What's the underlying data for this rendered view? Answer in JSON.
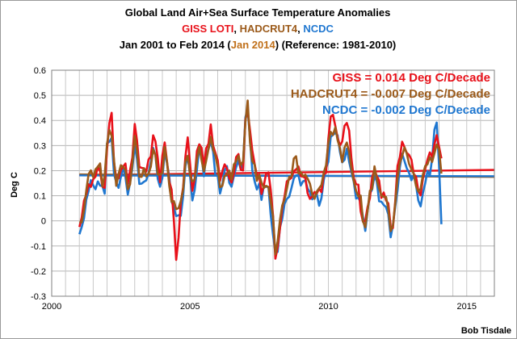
{
  "chart_data": {
    "type": "line",
    "title": "Global Land Air+Sea Surface Temperature Anomalies",
    "subtitle_parts": [
      {
        "text": "GISS LOTI",
        "color": "#e8111a"
      },
      {
        "text": ", ",
        "color": "#000000"
      },
      {
        "text": "HADCRUT4",
        "color": "#9b5a1a"
      },
      {
        "text": ", ",
        "color": "#000000"
      },
      {
        "text": "NCDC",
        "color": "#1f77d0"
      }
    ],
    "period_parts": [
      {
        "text": "Jan 2001 to Feb 2014 (",
        "color": "#000000"
      },
      {
        "text": "Jan 2014",
        "color": "#c0701a"
      },
      {
        "text": ") (Reference: 1981-2010)",
        "color": "#000000"
      }
    ],
    "ylabel": "Deg C",
    "xlim": [
      2000,
      2016
    ],
    "ylim": [
      -0.3,
      0.6
    ],
    "xticks": [
      2000,
      2005,
      2010,
      2015
    ],
    "yticks": [
      -0.3,
      -0.2,
      -0.1,
      0,
      0.1,
      0.2,
      0.3,
      0.4,
      0.5,
      0.6
    ],
    "ytick_labels": [
      "-0.3",
      "-0.2",
      "-0.1",
      "0",
      "0.1",
      "0.2",
      "0.3",
      "0.4",
      "0.5",
      "0.6"
    ],
    "grid": true,
    "legend": "top-right",
    "credit": "Bob Tisdale",
    "series": [
      {
        "name": "GISS",
        "label": "GISS = 0.014 Deg C/Decade",
        "color": "#e8111a",
        "trend": [
          [
            2001.0,
            0.182
          ],
          [
            2016.0,
            0.203
          ]
        ],
        "anchors": [
          [
            2001.0,
            0.0
          ],
          [
            2001.1,
            -0.01
          ],
          [
            2001.3,
            0.18
          ],
          [
            2001.5,
            0.15
          ],
          [
            2001.7,
            0.2
          ],
          [
            2001.9,
            0.12
          ],
          [
            2002.0,
            0.3
          ],
          [
            2002.15,
            0.43
          ],
          [
            2002.3,
            0.17
          ],
          [
            2002.6,
            0.24
          ],
          [
            2002.8,
            0.14
          ],
          [
            2003.0,
            0.36
          ],
          [
            2003.2,
            0.2
          ],
          [
            2003.5,
            0.22
          ],
          [
            2003.7,
            0.33
          ],
          [
            2003.9,
            0.17
          ],
          [
            2004.1,
            0.3
          ],
          [
            2004.35,
            0.1
          ],
          [
            2004.5,
            -0.14
          ],
          [
            2004.7,
            0.08
          ],
          [
            2004.9,
            0.34
          ],
          [
            2005.1,
            0.1
          ],
          [
            2005.3,
            0.33
          ],
          [
            2005.5,
            0.24
          ],
          [
            2005.75,
            0.38
          ],
          [
            2005.9,
            0.27
          ],
          [
            2006.1,
            0.16
          ],
          [
            2006.3,
            0.25
          ],
          [
            2006.5,
            0.15
          ],
          [
            2006.7,
            0.3
          ],
          [
            2006.9,
            0.18
          ],
          [
            2007.05,
            0.51
          ],
          [
            2007.2,
            0.3
          ],
          [
            2007.4,
            0.2
          ],
          [
            2007.6,
            0.12
          ],
          [
            2007.8,
            0.2
          ],
          [
            2008.0,
            0.02
          ],
          [
            2008.1,
            -0.2
          ],
          [
            2008.3,
            0.05
          ],
          [
            2008.5,
            0.14
          ],
          [
            2008.8,
            0.22
          ],
          [
            2009.0,
            0.2
          ],
          [
            2009.2,
            0.15
          ],
          [
            2009.4,
            0.1
          ],
          [
            2009.7,
            0.12
          ],
          [
            2009.9,
            0.2
          ],
          [
            2010.1,
            0.42
          ],
          [
            2010.3,
            0.35
          ],
          [
            2010.5,
            0.3
          ],
          [
            2010.7,
            0.42
          ],
          [
            2010.9,
            0.2
          ],
          [
            2011.1,
            0.12
          ],
          [
            2011.3,
            -0.04
          ],
          [
            2011.5,
            0.1
          ],
          [
            2011.7,
            0.25
          ],
          [
            2011.9,
            0.08
          ],
          [
            2012.1,
            0.1
          ],
          [
            2012.3,
            -0.06
          ],
          [
            2012.5,
            0.2
          ],
          [
            2012.7,
            0.31
          ],
          [
            2012.9,
            0.24
          ],
          [
            2013.1,
            0.2
          ],
          [
            2013.3,
            0.08
          ],
          [
            2013.5,
            0.21
          ],
          [
            2013.7,
            0.26
          ],
          [
            2013.9,
            0.36
          ],
          [
            2014.0,
            0.31
          ],
          [
            2014.1,
            0.22
          ]
        ]
      },
      {
        "name": "HADCRUT4",
        "label": "HADCRUT4 = -0.007 Deg C/Decade",
        "color": "#9b5a1a",
        "trend": [
          [
            2001.0,
            0.185
          ],
          [
            2016.0,
            0.175
          ]
        ],
        "anchors": [
          [
            2001.0,
            0.02
          ],
          [
            2001.1,
            0.0
          ],
          [
            2001.3,
            0.19
          ],
          [
            2001.5,
            0.16
          ],
          [
            2001.7,
            0.22
          ],
          [
            2001.9,
            0.14
          ],
          [
            2002.0,
            0.33
          ],
          [
            2002.15,
            0.38
          ],
          [
            2002.3,
            0.16
          ],
          [
            2002.6,
            0.22
          ],
          [
            2002.8,
            0.12
          ],
          [
            2003.0,
            0.33
          ],
          [
            2003.2,
            0.17
          ],
          [
            2003.5,
            0.2
          ],
          [
            2003.7,
            0.31
          ],
          [
            2003.9,
            0.16
          ],
          [
            2004.1,
            0.28
          ],
          [
            2004.35,
            0.09
          ],
          [
            2004.5,
            0.06
          ],
          [
            2004.7,
            0.08
          ],
          [
            2004.9,
            0.3
          ],
          [
            2005.1,
            0.12
          ],
          [
            2005.3,
            0.3
          ],
          [
            2005.5,
            0.22
          ],
          [
            2005.75,
            0.33
          ],
          [
            2005.9,
            0.25
          ],
          [
            2006.1,
            0.14
          ],
          [
            2006.3,
            0.22
          ],
          [
            2006.5,
            0.16
          ],
          [
            2006.7,
            0.28
          ],
          [
            2006.9,
            0.2
          ],
          [
            2007.05,
            0.51
          ],
          [
            2007.2,
            0.27
          ],
          [
            2007.4,
            0.18
          ],
          [
            2007.6,
            0.14
          ],
          [
            2007.8,
            0.17
          ],
          [
            2008.0,
            0.0
          ],
          [
            2008.1,
            -0.18
          ],
          [
            2008.3,
            0.03
          ],
          [
            2008.5,
            0.12
          ],
          [
            2008.8,
            0.25
          ],
          [
            2009.0,
            0.18
          ],
          [
            2009.2,
            0.16
          ],
          [
            2009.4,
            0.1
          ],
          [
            2009.7,
            0.11
          ],
          [
            2009.9,
            0.22
          ],
          [
            2010.1,
            0.35
          ],
          [
            2010.3,
            0.36
          ],
          [
            2010.5,
            0.25
          ],
          [
            2010.7,
            0.33
          ],
          [
            2010.9,
            0.16
          ],
          [
            2011.1,
            0.12
          ],
          [
            2011.3,
            -0.02
          ],
          [
            2011.5,
            0.11
          ],
          [
            2011.7,
            0.21
          ],
          [
            2011.9,
            0.09
          ],
          [
            2012.1,
            0.07
          ],
          [
            2012.3,
            -0.06
          ],
          [
            2012.5,
            0.17
          ],
          [
            2012.7,
            0.28
          ],
          [
            2012.9,
            0.22
          ],
          [
            2013.1,
            0.18
          ],
          [
            2013.3,
            0.09
          ],
          [
            2013.5,
            0.2
          ],
          [
            2013.7,
            0.23
          ],
          [
            2013.9,
            0.33
          ],
          [
            2014.0,
            0.31
          ],
          [
            2014.1,
            0.2
          ]
        ]
      },
      {
        "name": "NCDC",
        "label": "NCDC = -0.002 Deg C/Decade",
        "color": "#1f77d0",
        "trend": [
          [
            2001.0,
            0.181
          ],
          [
            2016.0,
            0.178
          ]
        ],
        "anchors": [
          [
            2001.0,
            -0.03
          ],
          [
            2001.1,
            -0.05
          ],
          [
            2001.3,
            0.15
          ],
          [
            2001.5,
            0.13
          ],
          [
            2001.7,
            0.18
          ],
          [
            2001.9,
            0.1
          ],
          [
            2002.0,
            0.28
          ],
          [
            2002.15,
            0.36
          ],
          [
            2002.3,
            0.13
          ],
          [
            2002.6,
            0.2
          ],
          [
            2002.8,
            0.1
          ],
          [
            2003.0,
            0.31
          ],
          [
            2003.2,
            0.15
          ],
          [
            2003.5,
            0.18
          ],
          [
            2003.7,
            0.29
          ],
          [
            2003.9,
            0.13
          ],
          [
            2004.1,
            0.26
          ],
          [
            2004.35,
            0.07
          ],
          [
            2004.5,
            0.03
          ],
          [
            2004.7,
            0.05
          ],
          [
            2004.9,
            0.28
          ],
          [
            2005.1,
            0.08
          ],
          [
            2005.3,
            0.28
          ],
          [
            2005.5,
            0.2
          ],
          [
            2005.75,
            0.31
          ],
          [
            2005.9,
            0.22
          ],
          [
            2006.1,
            0.12
          ],
          [
            2006.3,
            0.2
          ],
          [
            2006.5,
            0.13
          ],
          [
            2006.7,
            0.26
          ],
          [
            2006.9,
            0.17
          ],
          [
            2007.05,
            0.49
          ],
          [
            2007.2,
            0.25
          ],
          [
            2007.4,
            0.15
          ],
          [
            2007.6,
            0.1
          ],
          [
            2007.8,
            0.14
          ],
          [
            2008.0,
            -0.03
          ],
          [
            2008.1,
            -0.17
          ],
          [
            2008.3,
            0.01
          ],
          [
            2008.5,
            0.09
          ],
          [
            2008.8,
            0.2
          ],
          [
            2009.0,
            0.15
          ],
          [
            2009.2,
            0.13
          ],
          [
            2009.4,
            0.07
          ],
          [
            2009.7,
            0.09
          ],
          [
            2009.9,
            0.19
          ],
          [
            2010.1,
            0.33
          ],
          [
            2010.3,
            0.33
          ],
          [
            2010.5,
            0.22
          ],
          [
            2010.7,
            0.3
          ],
          [
            2010.9,
            0.13
          ],
          [
            2011.1,
            0.1
          ],
          [
            2011.3,
            -0.05
          ],
          [
            2011.5,
            0.08
          ],
          [
            2011.7,
            0.19
          ],
          [
            2011.9,
            0.06
          ],
          [
            2012.1,
            0.05
          ],
          [
            2012.3,
            -0.07
          ],
          [
            2012.5,
            0.14
          ],
          [
            2012.7,
            0.26
          ],
          [
            2012.9,
            0.2
          ],
          [
            2013.1,
            0.15
          ],
          [
            2013.3,
            0.06
          ],
          [
            2013.5,
            0.17
          ],
          [
            2013.7,
            0.21
          ],
          [
            2013.9,
            0.4
          ],
          [
            2014.0,
            0.2
          ],
          [
            2014.1,
            -0.04
          ]
        ]
      }
    ]
  }
}
